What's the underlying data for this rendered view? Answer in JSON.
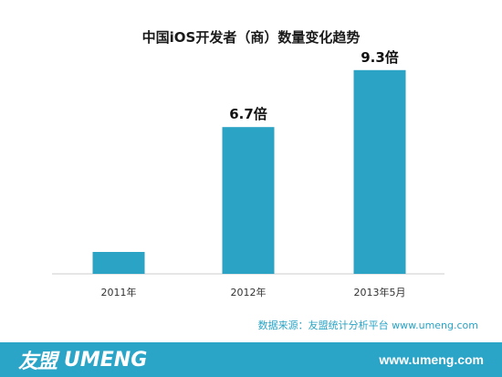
{
  "chart_data": {
    "type": "bar",
    "title": "中国iOS开发者（商）数量变化趋势",
    "categories": [
      "2011年",
      "2012年",
      "2013年5月"
    ],
    "values": [
      1,
      6.7,
      9.3
    ],
    "data_labels": [
      "",
      "6.7倍",
      "9.3倍"
    ],
    "ylim": [
      0,
      10
    ],
    "grid": false,
    "bar_color": "#2ba3c4",
    "axis_color": "#cccccc"
  },
  "source_text": "数据来源：友盟统计分析平台 www.umeng.com",
  "footer": {
    "logo_cn": "友盟",
    "logo_en": "UMENG",
    "url": "www.umeng.com",
    "background": "#2aa4c7"
  }
}
